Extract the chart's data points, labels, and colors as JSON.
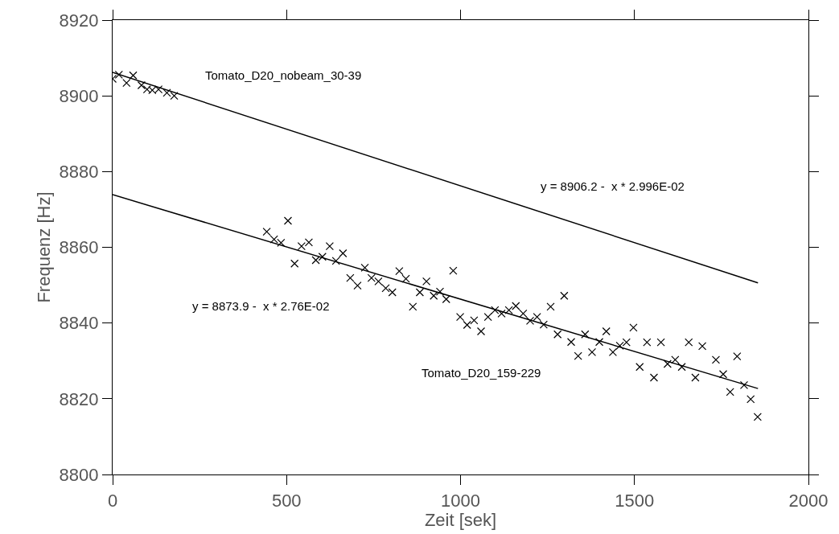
{
  "chart_data": {
    "type": "scatter",
    "xlabel": "Zeit [sek]",
    "ylabel": "Frequenz [Hz]",
    "xlim": [
      0,
      2000
    ],
    "xticks": [
      0,
      500,
      1000,
      1500,
      2000
    ],
    "ylim": [
      8800,
      8920
    ],
    "yticks": [
      8800,
      8820,
      8840,
      8860,
      8880,
      8900,
      8920
    ],
    "legend": false,
    "marker": "cross",
    "series": [
      {
        "name": "Tomato_D20_nobeam_30-39",
        "color": "#000000",
        "x": [
          0,
          18,
          40,
          59,
          83,
          99,
          114,
          132,
          156,
          177
        ],
        "values": [
          8904.5,
          8905.6,
          8903.4,
          8905.4,
          8902.8,
          8901.7,
          8901.5,
          8901.7,
          8900.8,
          8900.0
        ]
      },
      {
        "name": "Tomato_D20_159-229",
        "color": "#000000",
        "x": [
          443,
          464,
          484,
          504,
          523,
          543,
          564,
          584,
          603,
          624,
          642,
          662,
          683,
          704,
          725,
          744,
          764,
          785,
          804,
          824,
          843,
          863,
          883,
          902,
          923,
          941,
          959,
          979,
          999,
          1019,
          1039,
          1059,
          1079,
          1099,
          1118,
          1139,
          1159,
          1180,
          1200,
          1220,
          1239,
          1259,
          1279,
          1298,
          1318,
          1338,
          1358,
          1378,
          1399,
          1419,
          1438,
          1458,
          1477,
          1497,
          1515,
          1536,
          1556,
          1576,
          1595,
          1617,
          1636,
          1656,
          1675,
          1695,
          1734,
          1755,
          1775,
          1795,
          1815,
          1834,
          1854
        ],
        "values": [
          8864.1,
          8862.1,
          8861.2,
          8867.0,
          8855.7,
          8860.3,
          8861.3,
          8856.6,
          8857.5,
          8860.3,
          8856.4,
          8858.4,
          8851.9,
          8849.9,
          8854.6,
          8851.9,
          8851.0,
          8849.2,
          8848.1,
          8853.7,
          8851.7,
          8844.3,
          8848.1,
          8851.0,
          8847.2,
          8848.3,
          8846.3,
          8853.8,
          8841.6,
          8839.5,
          8840.7,
          8837.8,
          8841.6,
          8843.4,
          8842.5,
          8843.4,
          8844.5,
          8842.5,
          8840.6,
          8841.6,
          8839.6,
          8844.3,
          8837.0,
          8847.2,
          8835.0,
          8831.3,
          8837.0,
          8832.3,
          8835.0,
          8837.8,
          8832.3,
          8834.0,
          8834.9,
          8838.8,
          8828.4,
          8834.9,
          8825.6,
          8834.9,
          8829.2,
          8830.3,
          8828.4,
          8834.9,
          8825.6,
          8833.9,
          8830.3,
          8826.5,
          8821.8,
          8831.2,
          8823.6,
          8819.9,
          8815.2
        ]
      },
      {
        "type": "line",
        "color": "#000000",
        "marker": "none",
        "line_style": "solid",
        "x": [
          0,
          1855
        ],
        "values": [
          8906.2,
          8850.6
        ]
      },
      {
        "type": "line",
        "color": "#000000",
        "marker": "none",
        "line_style": "solid",
        "x": [
          0,
          1855
        ],
        "values": [
          8873.9,
          8822.7
        ]
      }
    ],
    "annotations": [
      "y = 8906.2 -  x * 2.996E-02",
      "y = 8873.9 -  x * 2.76E-02"
    ]
  }
}
